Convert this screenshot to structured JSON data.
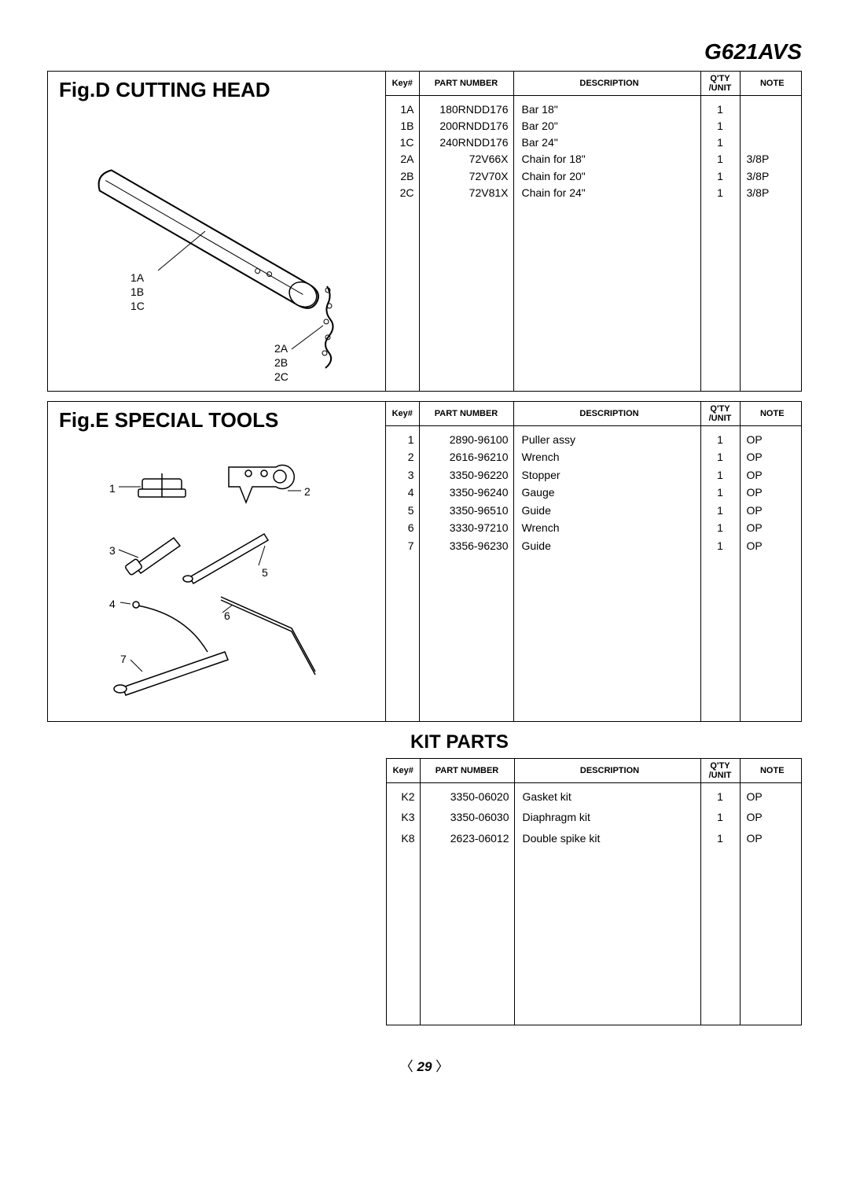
{
  "model": "G621AVS",
  "page_number": "29",
  "columns": {
    "key": "Key#",
    "part": "PART NUMBER",
    "desc": "DESCRIPTION",
    "qty": "Q'TY\n/UNIT",
    "note": "NOTE"
  },
  "figD": {
    "title": "Fig.D  CUTTING HEAD",
    "label_group_1": "1A\n1B\n1C",
    "label_group_2": "2A\n2B\n2C",
    "rows": [
      {
        "key": "1A",
        "part": "180RNDD176",
        "desc": "Bar 18\"",
        "qty": "1",
        "note": ""
      },
      {
        "key": "1B",
        "part": "200RNDD176",
        "desc": "Bar 20\"",
        "qty": "1",
        "note": ""
      },
      {
        "key": "1C",
        "part": "240RNDD176",
        "desc": "Bar 24\"",
        "qty": "1",
        "note": ""
      },
      {
        "key": "2A",
        "part": "72V66X",
        "desc": "Chain for 18\"",
        "qty": "1",
        "note": "3/8P"
      },
      {
        "key": "2B",
        "part": "72V70X",
        "desc": "Chain for 20\"",
        "qty": "1",
        "note": "3/8P"
      },
      {
        "key": "2C",
        "part": "72V81X",
        "desc": "Chain for 24\"",
        "qty": "1",
        "note": "3/8P"
      }
    ]
  },
  "figE": {
    "title": "Fig.E  SPECIAL TOOLS",
    "labels": {
      "l1": "1",
      "l2": "2",
      "l3": "3",
      "l4": "4",
      "l5": "5",
      "l6": "6",
      "l7": "7"
    },
    "rows": [
      {
        "key": "1",
        "part": "2890-96100",
        "desc": "Puller assy",
        "qty": "1",
        "note": "OP"
      },
      {
        "key": "2",
        "part": "2616-96210",
        "desc": "Wrench",
        "qty": "1",
        "note": "OP"
      },
      {
        "key": "3",
        "part": "3350-96220",
        "desc": "Stopper",
        "qty": "1",
        "note": "OP"
      },
      {
        "key": "4",
        "part": "3350-96240",
        "desc": "Gauge",
        "qty": "1",
        "note": "OP"
      },
      {
        "key": "5",
        "part": "3350-96510",
        "desc": "Guide",
        "qty": "1",
        "note": "OP"
      },
      {
        "key": "6",
        "part": "3330-97210",
        "desc": "Wrench",
        "qty": "1",
        "note": "OP"
      },
      {
        "key": "7",
        "part": "3356-96230",
        "desc": "Guide",
        "qty": "1",
        "note": "OP"
      }
    ]
  },
  "kit": {
    "title": "KIT PARTS",
    "rows": [
      {
        "key": "K2",
        "part": "3350-06020",
        "desc": "Gasket kit",
        "qty": "1",
        "note": "OP"
      },
      {
        "key": "K3",
        "part": "3350-06030",
        "desc": "Diaphragm kit",
        "qty": "1",
        "note": "OP"
      },
      {
        "key": "K8",
        "part": "2623-06012",
        "desc": "Double spike kit",
        "qty": "1",
        "note": "OP"
      }
    ]
  }
}
